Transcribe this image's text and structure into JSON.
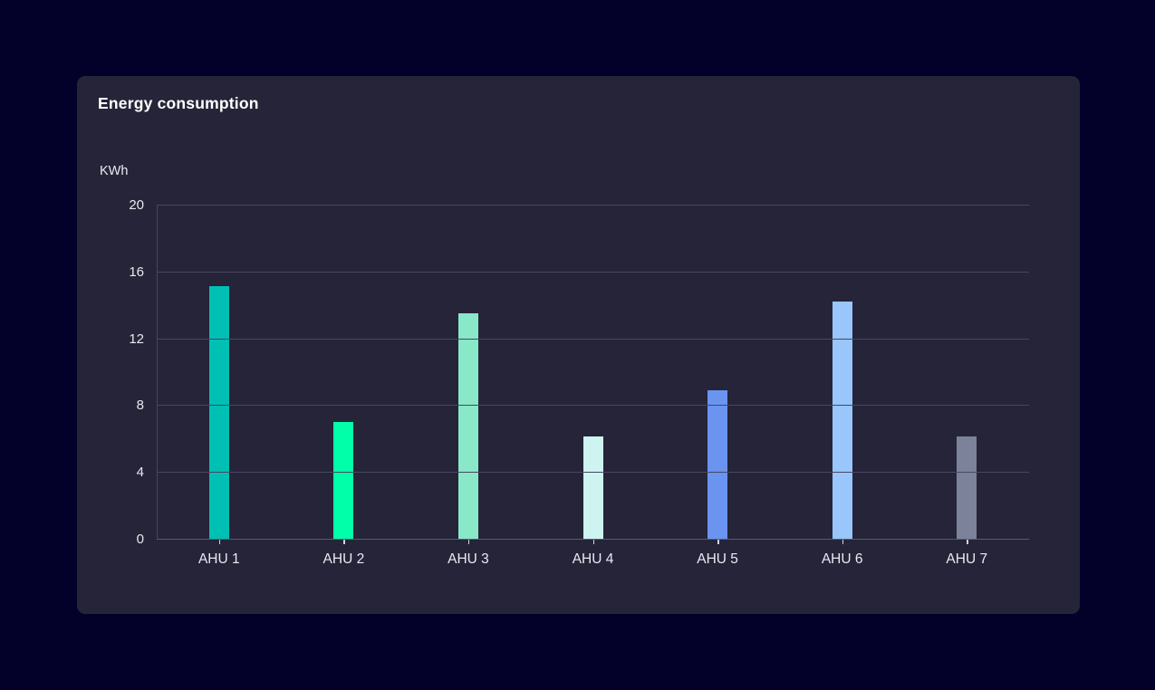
{
  "page": {
    "background_color": "#030129"
  },
  "card": {
    "background_color": "#252438",
    "title": "Energy consumption",
    "unit_label": "KWh"
  },
  "chart_data": {
    "type": "bar",
    "title": "Energy consumption",
    "xlabel": "",
    "ylabel": "KWh",
    "categories": [
      "AHU 1",
      "AHU 2",
      "AHU 3",
      "AHU 4",
      "AHU 5",
      "AHU 6",
      "AHU 7"
    ],
    "values": [
      15.1,
      7.0,
      13.5,
      6.1,
      8.9,
      14.2,
      6.1
    ],
    "bar_colors": [
      "#00C0B4",
      "#00FFA8",
      "#89E8C8",
      "#CDF4F0",
      "#6A94F0",
      "#99C6FB",
      "#7D829B"
    ],
    "ylim": [
      0,
      20
    ],
    "yticks": [
      0,
      4,
      8,
      12,
      16,
      20
    ],
    "grid": true,
    "gridline_color": "#474761",
    "axis_line_color": "#5a5a74",
    "tick_mark_color": "#d2d2dd",
    "legend": "none"
  }
}
